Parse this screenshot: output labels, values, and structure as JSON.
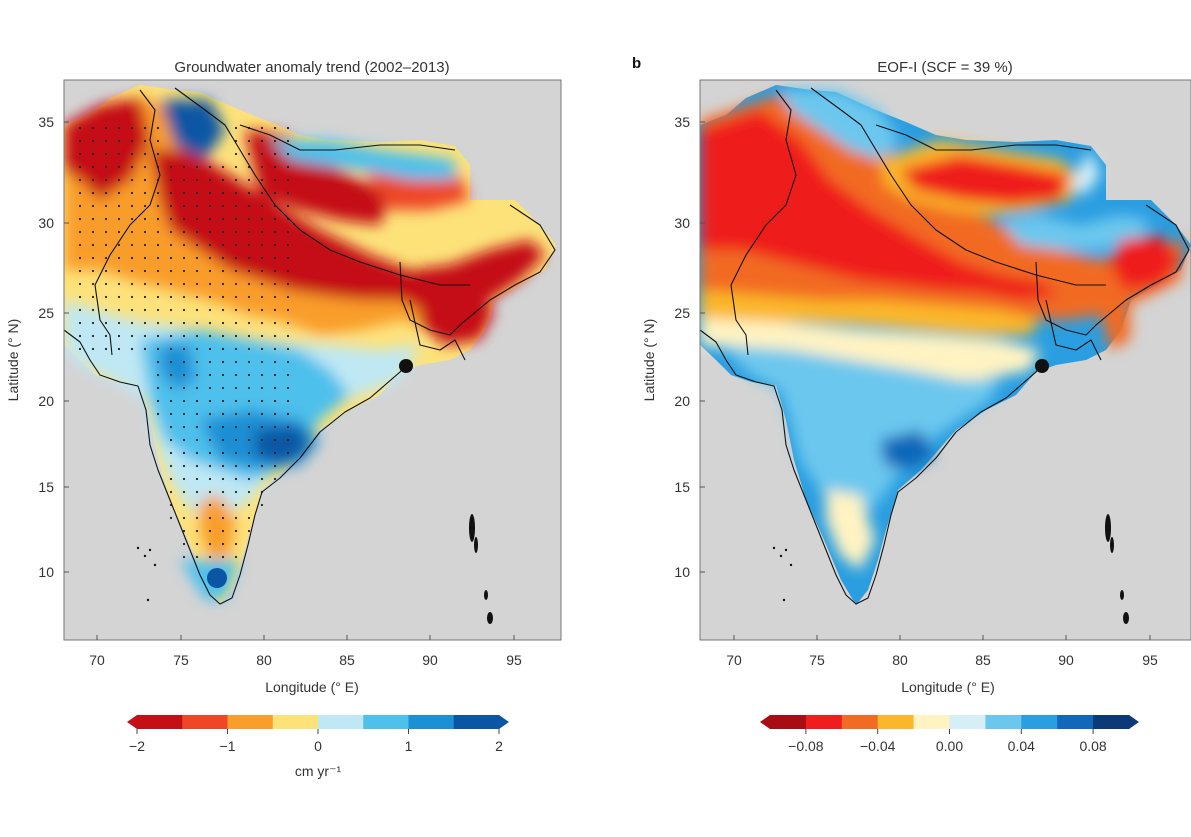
{
  "panels": [
    {
      "id": "a",
      "panel_label": "",
      "title": "Groundwater anomaly trend (2002–2013)",
      "xlabel": "Longitude (° E)",
      "ylabel": "Latitude (° N)",
      "xticks": [
        "70",
        "75",
        "80",
        "85",
        "90",
        "95"
      ],
      "yticks": [
        "10",
        "15",
        "20",
        "25",
        "30",
        "35"
      ],
      "colorbar": {
        "colors": [
          "#c40f17",
          "#ee4626",
          "#f99d2b",
          "#fde27a",
          "#bfe8f4",
          "#4ec0ec",
          "#1d8fd4",
          "#0a56a4"
        ],
        "end_colors": [
          "#c40f17",
          "#0a56a4"
        ],
        "ticks": [
          "−2",
          "−1",
          "0",
          "1",
          "2"
        ],
        "unit": "cm yr⁻¹"
      }
    },
    {
      "id": "b",
      "panel_label": "b",
      "title": "EOF-I (SCF = 39 %)",
      "xlabel": "Longitude (° E)",
      "ylabel": "Latitude (° N)",
      "xticks": [
        "70",
        "75",
        "80",
        "85",
        "90",
        "95"
      ],
      "yticks": [
        "10",
        "15",
        "20",
        "25",
        "30",
        "35"
      ],
      "colorbar": {
        "colors": [
          "#a90d14",
          "#ef1d1d",
          "#f26b22",
          "#fbb72c",
          "#fff3c2",
          "#d6eff7",
          "#6cc7ee",
          "#2a9ee0",
          "#1167b9",
          "#0c3a78"
        ],
        "end_colors": [
          "#a90d14",
          "#0c3a78"
        ],
        "ticks": [
          "−0.08",
          "−0.04",
          "0.00",
          "0.04",
          "0.08"
        ],
        "unit": ""
      }
    }
  ],
  "colors": {
    "ocean": "#d4d4d4",
    "border": "#111111"
  }
}
